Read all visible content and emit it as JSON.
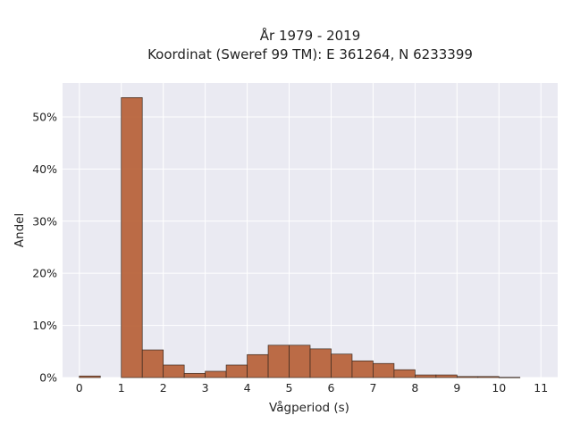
{
  "chart_data": {
    "type": "bar",
    "title_line1": "År 1979 - 2019",
    "title_line2": "Koordinat (Sweref 99 TM): E 361264, N 6233399",
    "xlabel": "Vågperiod (s)",
    "ylabel": "Andel",
    "xlim": [
      -0.4,
      11.4
    ],
    "ylim": [
      0,
      56.5
    ],
    "x_ticks": [
      "0",
      "1",
      "2",
      "3",
      "4",
      "5",
      "6",
      "7",
      "8",
      "9",
      "10",
      "11"
    ],
    "y_ticks": [
      "0%",
      "10%",
      "20%",
      "30%",
      "40%",
      "50%"
    ],
    "bin_width": 0.5,
    "bins": [
      {
        "x0": 0.0,
        "value": 0.3
      },
      {
        "x0": 0.5,
        "value": 0.0
      },
      {
        "x0": 1.0,
        "value": 53.7
      },
      {
        "x0": 1.5,
        "value": 5.3
      },
      {
        "x0": 2.0,
        "value": 2.4
      },
      {
        "x0": 2.5,
        "value": 0.8
      },
      {
        "x0": 3.0,
        "value": 1.2
      },
      {
        "x0": 3.5,
        "value": 2.4
      },
      {
        "x0": 4.0,
        "value": 4.4
      },
      {
        "x0": 4.5,
        "value": 6.2
      },
      {
        "x0": 5.0,
        "value": 6.2
      },
      {
        "x0": 5.5,
        "value": 5.5
      },
      {
        "x0": 6.0,
        "value": 4.5
      },
      {
        "x0": 6.5,
        "value": 3.2
      },
      {
        "x0": 7.0,
        "value": 2.7
      },
      {
        "x0": 7.5,
        "value": 1.5
      },
      {
        "x0": 8.0,
        "value": 0.5
      },
      {
        "x0": 8.5,
        "value": 0.5
      },
      {
        "x0": 9.0,
        "value": 0.2
      },
      {
        "x0": 9.5,
        "value": 0.2
      },
      {
        "x0": 10.0,
        "value": 0.05
      },
      {
        "x0": 10.5,
        "value": 0.0
      }
    ],
    "bar_color": "#b8643c",
    "bar_edge_color": "#3a2a20",
    "background_color": "#eaeaf2",
    "grid": true,
    "grid_color": "#ffffff",
    "legend": "none"
  }
}
